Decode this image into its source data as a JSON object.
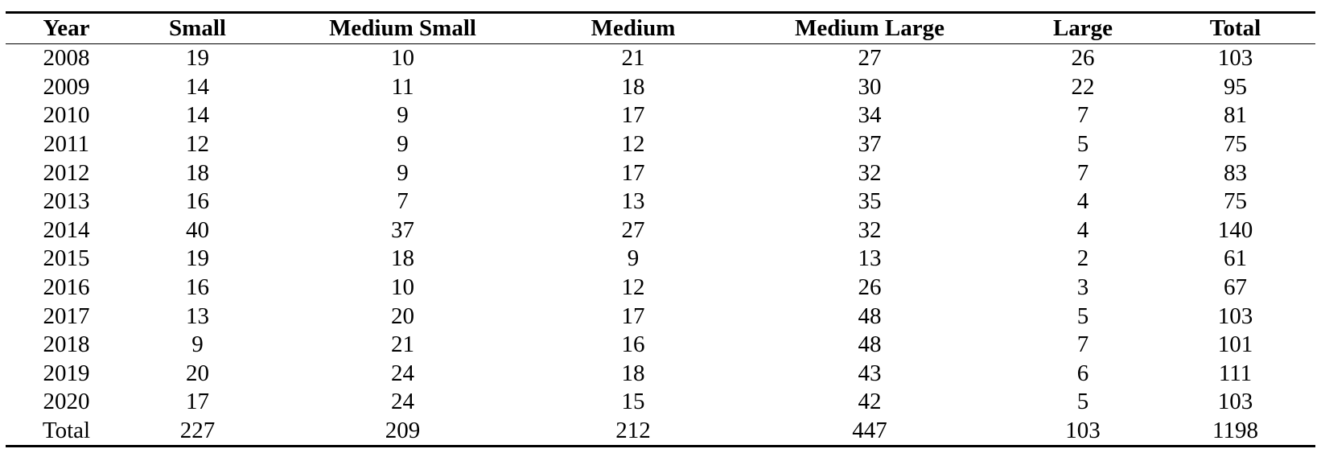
{
  "table": {
    "headers": [
      "Year",
      "Small",
      "Medium Small",
      "Medium",
      "Medium Large",
      "Large",
      "Total"
    ],
    "rows": [
      [
        "2008",
        "19",
        "10",
        "21",
        "27",
        "26",
        "103"
      ],
      [
        "2009",
        "14",
        "11",
        "18",
        "30",
        "22",
        "95"
      ],
      [
        "2010",
        "14",
        "9",
        "17",
        "34",
        "7",
        "81"
      ],
      [
        "2011",
        "12",
        "9",
        "12",
        "37",
        "5",
        "75"
      ],
      [
        "2012",
        "18",
        "9",
        "17",
        "32",
        "7",
        "83"
      ],
      [
        "2013",
        "16",
        "7",
        "13",
        "35",
        "4",
        "75"
      ],
      [
        "2014",
        "40",
        "37",
        "27",
        "32",
        "4",
        "140"
      ],
      [
        "2015",
        "19",
        "18",
        "9",
        "13",
        "2",
        "61"
      ],
      [
        "2016",
        "16",
        "10",
        "12",
        "26",
        "3",
        "67"
      ],
      [
        "2017",
        "13",
        "20",
        "17",
        "48",
        "5",
        "103"
      ],
      [
        "2018",
        "9",
        "21",
        "16",
        "48",
        "7",
        "101"
      ],
      [
        "2019",
        "20",
        "24",
        "18",
        "43",
        "6",
        "111"
      ],
      [
        "2020",
        "17",
        "24",
        "15",
        "42",
        "5",
        "103"
      ],
      [
        "Total",
        "227",
        "209",
        "212",
        "447",
        "103",
        "1198"
      ]
    ]
  }
}
